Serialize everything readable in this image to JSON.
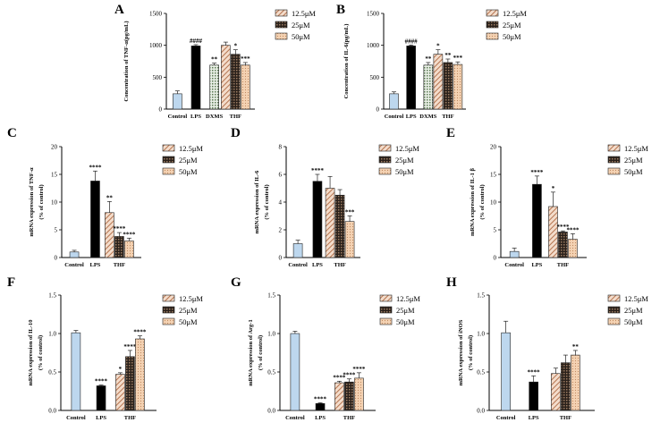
{
  "figure": {
    "colors": {
      "control": "#bdd7ee",
      "lps": "#000000",
      "dxms": "#8fa882",
      "c12_5": "#dcb29a",
      "c25": "#4a3a30",
      "c50": "#f0c9a6"
    },
    "legend_labels": [
      "12.5μM",
      "25μM",
      "50μM"
    ]
  },
  "chart_data": [
    {
      "panel": "A",
      "type": "bar",
      "ylabel": "Concentration of TNF-α(pg/mL)",
      "ylim": [
        0,
        1500
      ],
      "yticks": [
        0,
        500,
        1000,
        1500
      ],
      "bars": [
        {
          "label": "Control",
          "value": 240,
          "err": 45,
          "fill": "control",
          "sig": ""
        },
        {
          "label": "LPS",
          "value": 990,
          "err": 20,
          "fill": "lps",
          "sig": "####"
        },
        {
          "label": "DXMS",
          "value": 690,
          "err": 30,
          "fill": "dxms",
          "sig": "**"
        },
        {
          "label": "",
          "value": 1000,
          "err": 50,
          "fill": "c12_5",
          "sig": ""
        },
        {
          "label": "THF",
          "value": 860,
          "err": 70,
          "fill": "c25",
          "sig": "*"
        },
        {
          "label": "",
          "value": 690,
          "err": 40,
          "fill": "c50",
          "sig": "***"
        }
      ]
    },
    {
      "panel": "B",
      "type": "bar",
      "ylabel": "Concentration of IL-6(pg/mL)",
      "ylim": [
        0,
        1500
      ],
      "yticks": [
        0,
        500,
        1000,
        1500
      ],
      "bars": [
        {
          "label": "Control",
          "value": 240,
          "err": 30,
          "fill": "control",
          "sig": ""
        },
        {
          "label": "LPS",
          "value": 990,
          "err": 15,
          "fill": "lps",
          "sig": "####"
        },
        {
          "label": "DXMS",
          "value": 690,
          "err": 40,
          "fill": "dxms",
          "sig": "**"
        },
        {
          "label": "",
          "value": 860,
          "err": 70,
          "fill": "c12_5",
          "sig": "*"
        },
        {
          "label": "THF",
          "value": 730,
          "err": 55,
          "fill": "c25",
          "sig": "**"
        },
        {
          "label": "",
          "value": 700,
          "err": 40,
          "fill": "c50",
          "sig": "***"
        }
      ]
    },
    {
      "panel": "C",
      "type": "bar",
      "ylabel": "mRNA expression of TNF-α",
      "ylabel2": "(% of control)",
      "ylim": [
        0,
        20
      ],
      "yticks": [
        0,
        5,
        10,
        15,
        20
      ],
      "bars": [
        {
          "label": "Control",
          "value": 1.0,
          "err": 0.3,
          "fill": "control",
          "sig": ""
        },
        {
          "label": "LPS",
          "value": 13.8,
          "err": 1.8,
          "fill": "lps",
          "sig": "****"
        },
        {
          "label": "",
          "value": 8.1,
          "err": 2.0,
          "fill": "c12_5",
          "sig": "**"
        },
        {
          "label": "THF",
          "value": 3.8,
          "err": 0.7,
          "fill": "c25",
          "sig": "****"
        },
        {
          "label": "",
          "value": 3.0,
          "err": 0.5,
          "fill": "c50",
          "sig": "****"
        }
      ]
    },
    {
      "panel": "D",
      "type": "bar",
      "ylabel": "mRNA expression of IL-6",
      "ylabel2": "(% of control)",
      "ylim": [
        0,
        8
      ],
      "yticks": [
        0,
        2,
        4,
        6,
        8
      ],
      "bars": [
        {
          "label": "Control",
          "value": 1.0,
          "err": 0.25,
          "fill": "control",
          "sig": ""
        },
        {
          "label": "LPS",
          "value": 5.5,
          "err": 0.5,
          "fill": "lps",
          "sig": "****"
        },
        {
          "label": "",
          "value": 5.0,
          "err": 0.85,
          "fill": "c12_5",
          "sig": ""
        },
        {
          "label": "THF",
          "value": 4.5,
          "err": 0.4,
          "fill": "c25",
          "sig": ""
        },
        {
          "label": "",
          "value": 2.6,
          "err": 0.4,
          "fill": "c50",
          "sig": "***"
        }
      ]
    },
    {
      "panel": "E",
      "type": "bar",
      "ylabel": "mRNA expression of IL-1 β",
      "ylabel2": "(% of control)",
      "ylim": [
        0,
        20
      ],
      "yticks": [
        0,
        5,
        10,
        15,
        20
      ],
      "bars": [
        {
          "label": "Control",
          "value": 1.1,
          "err": 0.6,
          "fill": "control",
          "sig": ""
        },
        {
          "label": "LPS",
          "value": 13.2,
          "err": 1.5,
          "fill": "lps",
          "sig": "****"
        },
        {
          "label": "",
          "value": 9.2,
          "err": 2.6,
          "fill": "c12_5",
          "sig": "*"
        },
        {
          "label": "THF",
          "value": 4.6,
          "err": 0.2,
          "fill": "c25",
          "sig": "****"
        },
        {
          "label": "",
          "value": 3.3,
          "err": 1.0,
          "fill": "c50",
          "sig": "****"
        }
      ]
    },
    {
      "panel": "F",
      "type": "bar",
      "ylabel": "mRNA expression of IL-10",
      "ylabel2": "(% of control)",
      "ylim": [
        0,
        1.5
      ],
      "yticks": [
        0,
        0.5,
        1.0,
        1.5
      ],
      "bars": [
        {
          "label": "Control",
          "value": 1.01,
          "err": 0.03,
          "fill": "control",
          "sig": ""
        },
        {
          "label": "LPS",
          "value": 0.32,
          "err": 0.01,
          "fill": "lps",
          "sig": "****"
        },
        {
          "label": "",
          "value": 0.47,
          "err": 0.02,
          "fill": "c12_5",
          "sig": "*"
        },
        {
          "label": "THF",
          "value": 0.7,
          "err": 0.08,
          "fill": "c25",
          "sig": "****"
        },
        {
          "label": "",
          "value": 0.93,
          "err": 0.04,
          "fill": "c50",
          "sig": "****"
        }
      ]
    },
    {
      "panel": "G",
      "type": "bar",
      "ylabel": "mRNA expression of Arg-1",
      "ylabel2": "(% of control)",
      "ylim": [
        0,
        1.5
      ],
      "yticks": [
        0,
        0.5,
        1.0,
        1.5
      ],
      "bars": [
        {
          "label": "Control",
          "value": 1.0,
          "err": 0.03,
          "fill": "control",
          "sig": ""
        },
        {
          "label": "LPS",
          "value": 0.09,
          "err": 0.01,
          "fill": "lps",
          "sig": "****"
        },
        {
          "label": "",
          "value": 0.36,
          "err": 0.02,
          "fill": "c12_5",
          "sig": "****"
        },
        {
          "label": "THF",
          "value": 0.37,
          "err": 0.04,
          "fill": "c25",
          "sig": "****"
        },
        {
          "label": "",
          "value": 0.42,
          "err": 0.07,
          "fill": "c50",
          "sig": "****"
        }
      ]
    },
    {
      "panel": "H",
      "type": "bar",
      "ylabel": "mRNA expression of iNOS",
      "ylabel2": "(% of control)",
      "ylim": [
        0,
        1.5
      ],
      "yticks": [
        0,
        0.5,
        1.0,
        1.5
      ],
      "bars": [
        {
          "label": "Control",
          "value": 1.01,
          "err": 0.15,
          "fill": "control",
          "sig": ""
        },
        {
          "label": "LPS",
          "value": 0.37,
          "err": 0.08,
          "fill": "lps",
          "sig": "****"
        },
        {
          "label": "",
          "value": 0.48,
          "err": 0.07,
          "fill": "c12_5",
          "sig": ""
        },
        {
          "label": "THF",
          "value": 0.62,
          "err": 0.1,
          "fill": "c25",
          "sig": ""
        },
        {
          "label": "",
          "value": 0.72,
          "err": 0.06,
          "fill": "c50",
          "sig": "**"
        }
      ]
    }
  ]
}
